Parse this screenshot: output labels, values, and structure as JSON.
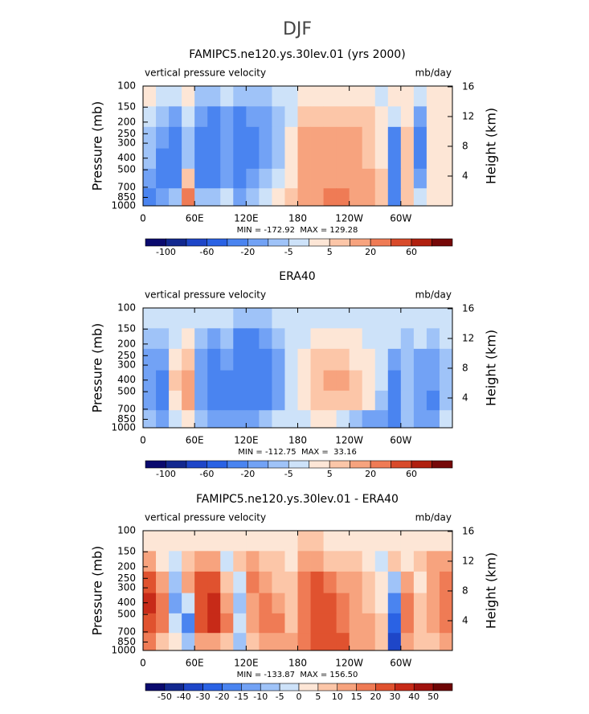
{
  "title": "DJF",
  "chart_data": [
    {
      "type": "contour",
      "title": "FAMIPC5.ne120.ys.30lev.01 (yrs 2000)",
      "left_label": "vertical pressure velocity",
      "right_label": "mb/day",
      "ylabel": "Pressure (mb)",
      "y2label": "Height (km)",
      "annotation": "MIN = -172.92  MAX = 129.28",
      "xlim": [
        0,
        360
      ],
      "xticks": [
        0,
        {
          "value": 60,
          "label": "60E"
        },
        {
          "value": 120,
          "label": "120E"
        },
        180,
        {
          "value": 240,
          "label": "120W"
        },
        {
          "value": 300,
          "label": "60W"
        }
      ],
      "ylim": [
        1000,
        100
      ],
      "ylog": true,
      "yticks": [
        100,
        150,
        200,
        250,
        300,
        400,
        500,
        700,
        850,
        1000
      ],
      "y2lim": [
        0,
        16.1
      ],
      "y2ticks": [
        4,
        8,
        12,
        16
      ],
      "levels": [
        -100,
        -80,
        -60,
        -40,
        -20,
        -10,
        -5,
        0,
        5,
        10,
        20,
        40,
        60,
        80
      ],
      "colorbar_ticks": [
        -100,
        -60,
        -20,
        -5,
        5,
        20,
        60
      ],
      "colors": [
        "#0a0a6e",
        "#12288f",
        "#1e46c8",
        "#2a62e4",
        "#4a84f0",
        "#72a2f5",
        "#9fc3f8",
        "#cde2f9",
        "#fde6d6",
        "#fcc6a8",
        "#f7a37e",
        "#ef7b55",
        "#d84a2a",
        "#b0200f",
        "#760808"
      ],
      "x": [
        7.5,
        22.5,
        37.5,
        52.5,
        67.5,
        82.5,
        97.5,
        112.5,
        127.5,
        142.5,
        157.5,
        172.5,
        187.5,
        202.5,
        217.5,
        232.5,
        247.5,
        262.5,
        277.5,
        292.5,
        307.5,
        322.5,
        337.5,
        352.5
      ],
      "y": [
        125,
        175,
        275,
        400,
        600,
        850
      ],
      "z": [
        [
          3,
          -3,
          -3,
          3,
          -8,
          -8,
          -3,
          -8,
          -8,
          -8,
          -3,
          -3,
          3,
          3,
          3,
          3,
          3,
          3,
          -3,
          3,
          3,
          -3,
          3,
          3
        ],
        [
          -3,
          -8,
          -15,
          -3,
          -15,
          -25,
          -15,
          -25,
          -15,
          -15,
          -8,
          -3,
          7,
          7,
          7,
          7,
          7,
          7,
          3,
          -3,
          3,
          -15,
          3,
          3
        ],
        [
          -8,
          -15,
          -25,
          -8,
          -25,
          -30,
          -15,
          -30,
          -25,
          -15,
          -8,
          3,
          15,
          15,
          12,
          12,
          15,
          7,
          3,
          -25,
          7,
          -25,
          3,
          3
        ],
        [
          -8,
          -25,
          -30,
          -8,
          -25,
          -30,
          -15,
          -30,
          -25,
          -15,
          -8,
          3,
          15,
          15,
          15,
          15,
          12,
          7,
          3,
          -30,
          7,
          -25,
          3,
          3
        ],
        [
          -15,
          -30,
          -25,
          7,
          -25,
          -25,
          -15,
          -30,
          -15,
          -8,
          -3,
          3,
          15,
          15,
          15,
          15,
          15,
          12,
          7,
          -30,
          7,
          -15,
          3,
          3
        ],
        [
          -25,
          -15,
          -8,
          25,
          -8,
          -8,
          -3,
          -15,
          -8,
          -3,
          3,
          7,
          15,
          15,
          25,
          25,
          15,
          12,
          7,
          -30,
          7,
          -3,
          3,
          3
        ]
      ]
    },
    {
      "type": "contour",
      "title": "ERA40",
      "left_label": "vertical pressure velocity",
      "right_label": "mb/day",
      "ylabel": "Pressure (mb)",
      "y2label": "Height (km)",
      "annotation": "MIN = -112.75  MAX =  33.16",
      "xlim": [
        0,
        360
      ],
      "xticks": [
        0,
        {
          "value": 60,
          "label": "60E"
        },
        {
          "value": 120,
          "label": "120E"
        },
        180,
        {
          "value": 240,
          "label": "120W"
        },
        {
          "value": 300,
          "label": "60W"
        }
      ],
      "ylim": [
        1000,
        100
      ],
      "ylog": true,
      "yticks": [
        100,
        150,
        200,
        250,
        300,
        400,
        500,
        700,
        850,
        1000
      ],
      "y2lim": [
        0,
        16.1
      ],
      "y2ticks": [
        4,
        8,
        12,
        16
      ],
      "levels": [
        -100,
        -80,
        -60,
        -40,
        -20,
        -10,
        -5,
        0,
        5,
        10,
        20,
        40,
        60,
        80
      ],
      "colorbar_ticks": [
        -100,
        -60,
        -20,
        -5,
        5,
        20,
        60
      ],
      "colors": [
        "#0a0a6e",
        "#12288f",
        "#1e46c8",
        "#2a62e4",
        "#4a84f0",
        "#72a2f5",
        "#9fc3f8",
        "#cde2f9",
        "#fde6d6",
        "#fcc6a8",
        "#f7a37e",
        "#ef7b55",
        "#d84a2a",
        "#b0200f",
        "#760808"
      ],
      "x": [
        7.5,
        22.5,
        37.5,
        52.5,
        67.5,
        82.5,
        97.5,
        112.5,
        127.5,
        142.5,
        157.5,
        172.5,
        187.5,
        202.5,
        217.5,
        232.5,
        247.5,
        262.5,
        277.5,
        292.5,
        307.5,
        322.5,
        337.5,
        352.5
      ],
      "y": [
        125,
        175,
        275,
        400,
        600,
        850
      ],
      "z": [
        [
          -3,
          -3,
          -3,
          -3,
          -3,
          -3,
          -3,
          -8,
          -8,
          -8,
          -3,
          -3,
          -3,
          -3,
          -3,
          -3,
          -3,
          -3,
          -3,
          -3,
          -3,
          -3,
          -3,
          -3
        ],
        [
          -8,
          -8,
          -3,
          3,
          -8,
          -15,
          -8,
          -25,
          -25,
          -15,
          -8,
          -3,
          -3,
          3,
          3,
          3,
          3,
          -3,
          -3,
          -3,
          -8,
          -3,
          -8,
          -3
        ],
        [
          -15,
          -15,
          3,
          7,
          -15,
          -25,
          -15,
          -30,
          -30,
          -25,
          -15,
          -3,
          3,
          7,
          7,
          7,
          3,
          3,
          -3,
          -15,
          -8,
          -15,
          -15,
          -8
        ],
        [
          -15,
          -25,
          7,
          15,
          -15,
          -25,
          -25,
          -30,
          -30,
          -25,
          -15,
          -3,
          3,
          7,
          12,
          12,
          7,
          3,
          -3,
          -25,
          -8,
          -15,
          -15,
          -8
        ],
        [
          -15,
          -25,
          3,
          15,
          -15,
          -25,
          -25,
          -30,
          -25,
          -25,
          -15,
          -3,
          3,
          7,
          7,
          7,
          7,
          3,
          -8,
          -30,
          -8,
          -15,
          -25,
          -8
        ],
        [
          -8,
          -15,
          -3,
          3,
          -8,
          -15,
          -15,
          -15,
          -15,
          -8,
          -3,
          -3,
          -3,
          3,
          3,
          -3,
          -8,
          -15,
          -15,
          -30,
          -8,
          -15,
          -15,
          -3
        ]
      ]
    },
    {
      "type": "contour",
      "title": "FAMIPC5.ne120.ys.30lev.01 - ERA40",
      "left_label": "vertical pressure velocity",
      "right_label": "mb/day",
      "ylabel": "Pressure (mb)",
      "y2label": "Height (km)",
      "annotation": "MIN = -133.87  MAX = 156.50",
      "xlim": [
        0,
        360
      ],
      "xticks": [
        0,
        {
          "value": 60,
          "label": "60E"
        },
        {
          "value": 120,
          "label": "120E"
        },
        180,
        {
          "value": 240,
          "label": "120W"
        },
        {
          "value": 300,
          "label": "60W"
        }
      ],
      "ylim": [
        1000,
        100
      ],
      "ylog": true,
      "yticks": [
        100,
        150,
        200,
        250,
        300,
        400,
        500,
        700,
        850,
        1000
      ],
      "y2lim": [
        0,
        16.1
      ],
      "y2ticks": [
        4,
        8,
        12,
        16
      ],
      "levels": [
        -50,
        -40,
        -30,
        -20,
        -15,
        -10,
        -5,
        0,
        5,
        10,
        15,
        20,
        30,
        40,
        50
      ],
      "colorbar_ticks": [
        -50,
        -40,
        -30,
        -20,
        -15,
        -10,
        -5,
        0,
        5,
        10,
        15,
        20,
        30,
        40,
        50
      ],
      "colors": [
        "#0a0a6e",
        "#12288f",
        "#1e46c8",
        "#2a62e4",
        "#4a84f0",
        "#72a2f5",
        "#9fc3f8",
        "#cde2f9",
        "#fde6d6",
        "#fcc6a8",
        "#f7a37e",
        "#ef7b55",
        "#e0522f",
        "#c72a18",
        "#a0120e",
        "#6e0505"
      ],
      "x": [
        7.5,
        22.5,
        37.5,
        52.5,
        67.5,
        82.5,
        97.5,
        112.5,
        127.5,
        142.5,
        157.5,
        172.5,
        187.5,
        202.5,
        217.5,
        232.5,
        247.5,
        262.5,
        277.5,
        292.5,
        307.5,
        322.5,
        337.5,
        352.5
      ],
      "y": [
        125,
        175,
        275,
        400,
        600,
        850
      ],
      "z": [
        [
          3,
          3,
          3,
          3,
          3,
          3,
          3,
          3,
          3,
          3,
          3,
          3,
          7,
          7,
          3,
          3,
          3,
          3,
          3,
          3,
          3,
          3,
          3,
          3
        ],
        [
          12,
          3,
          -3,
          7,
          12,
          12,
          -3,
          7,
          12,
          7,
          7,
          3,
          12,
          12,
          7,
          7,
          7,
          3,
          -3,
          7,
          3,
          7,
          12,
          12
        ],
        [
          25,
          12,
          -8,
          12,
          25,
          25,
          7,
          -3,
          17,
          12,
          7,
          7,
          17,
          25,
          17,
          12,
          12,
          7,
          3,
          -8,
          12,
          3,
          12,
          17
        ],
        [
          35,
          17,
          -12,
          -3,
          25,
          35,
          12,
          -8,
          12,
          17,
          12,
          7,
          17,
          25,
          25,
          17,
          12,
          7,
          3,
          -17,
          17,
          7,
          12,
          17
        ],
        [
          25,
          17,
          -3,
          -17,
          25,
          35,
          17,
          -3,
          12,
          17,
          17,
          7,
          17,
          25,
          25,
          17,
          12,
          12,
          7,
          -25,
          17,
          7,
          12,
          17
        ],
        [
          17,
          7,
          3,
          -8,
          12,
          12,
          7,
          -8,
          7,
          12,
          12,
          12,
          17,
          25,
          25,
          25,
          12,
          12,
          7,
          -35,
          12,
          7,
          7,
          12
        ]
      ]
    }
  ]
}
